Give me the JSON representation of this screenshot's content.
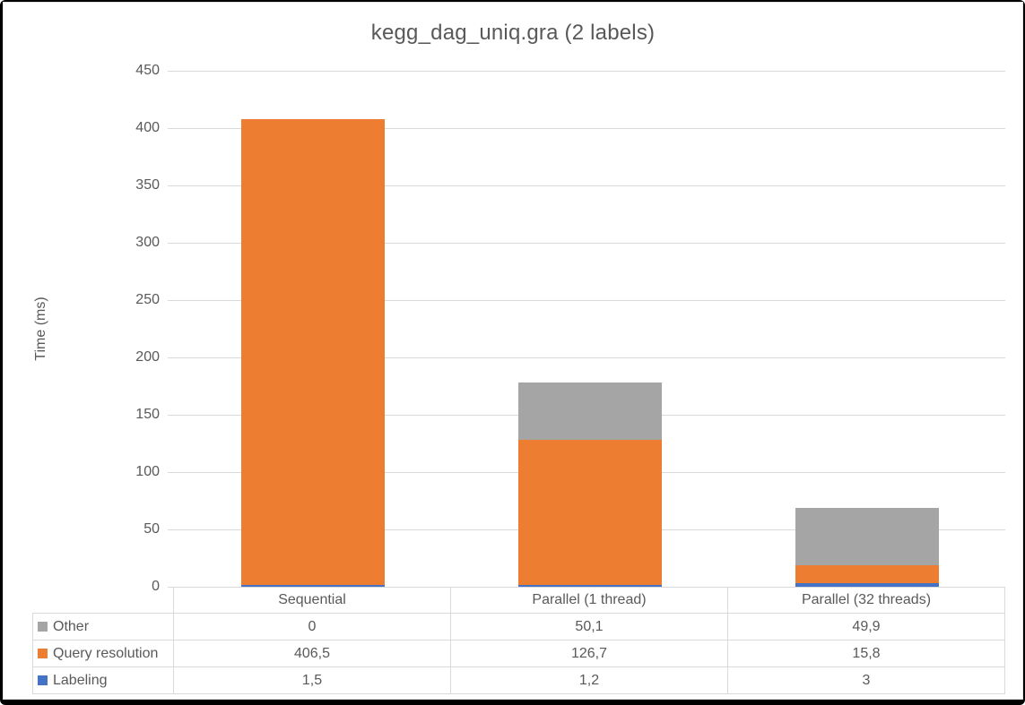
{
  "window": {
    "frame_color": "#000000",
    "canvas_color": "#FFFFFF"
  },
  "colors": {
    "gridline": "#D9D9D9",
    "table_border": "#D9D9D9",
    "text": "#595959"
  },
  "chart_data": {
    "type": "bar",
    "stacked": true,
    "title": "kegg_dag_uniq.gra (2 labels)",
    "ylabel": "Time (ms)",
    "ylim": [
      0,
      450
    ],
    "y_tick_step": 50,
    "y_ticks": [
      450,
      400,
      350,
      300,
      250,
      200,
      150,
      100,
      50,
      0
    ],
    "grid": true,
    "legend_position": "data-table-left-column",
    "categories": [
      "Sequential",
      "Parallel (1 thread)",
      "Parallel (32 threads)"
    ],
    "series": [
      {
        "name": "Labeling",
        "color": "#4472C4",
        "values": [
          1.5,
          1.2,
          3
        ],
        "table_values": [
          "1,5",
          "1,2",
          "3"
        ]
      },
      {
        "name": "Query resolution",
        "color": "#ED7D31",
        "values": [
          406.5,
          126.7,
          15.8
        ],
        "table_values": [
          "406,5",
          "126,7",
          "15,8"
        ]
      },
      {
        "name": "Other",
        "color": "#A5A5A5",
        "values": [
          0,
          50.1,
          49.9
        ],
        "table_values": [
          "0",
          "50,1",
          "49,9"
        ]
      }
    ],
    "table_row_order": [
      "Other",
      "Query resolution",
      "Labeling"
    ]
  }
}
